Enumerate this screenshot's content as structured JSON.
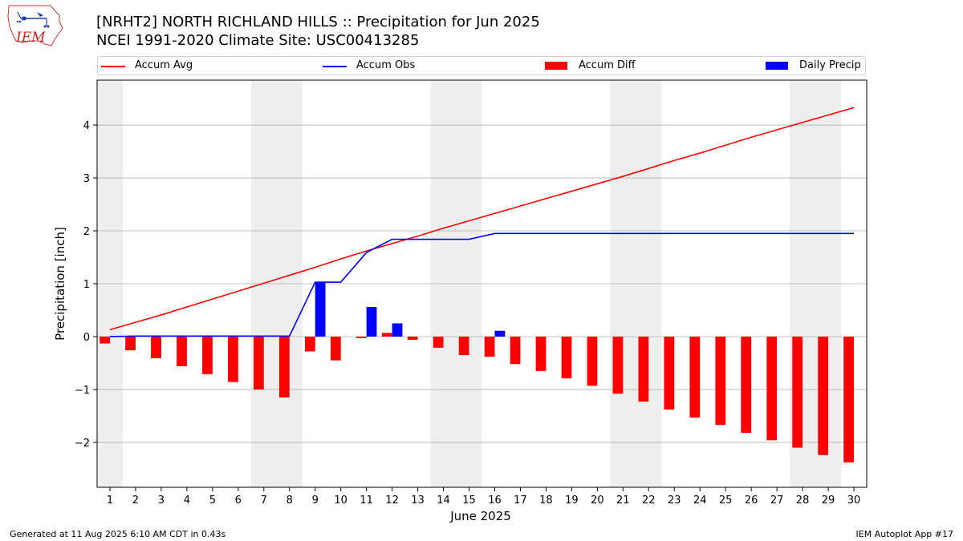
{
  "title_line1": "[NRHT2] NORTH RICHLAND HILLS :: Precipitation for Jun 2025",
  "title_line2": "NCEI 1991-2020 Climate Site: USC00413285",
  "logo_text": "IEM",
  "footer_left": "Generated at 11 Aug 2025 6:10 AM CDT in 0.43s",
  "footer_right": "IEM Autoplot App #17",
  "legend": [
    {
      "label": "Accum Avg",
      "kind": "line",
      "color": "#ff0000"
    },
    {
      "label": "Accum Obs",
      "kind": "line",
      "color": "#0000ff"
    },
    {
      "label": "Accum Diff",
      "kind": "box",
      "color": "#ff0000"
    },
    {
      "label": "Daily Precip",
      "kind": "box",
      "color": "#0000ff"
    }
  ],
  "chart_data": {
    "type": "bar",
    "xlabel": "June 2025",
    "ylabel": "Precipitation [inch]",
    "x": [
      1,
      2,
      3,
      4,
      5,
      6,
      7,
      8,
      9,
      10,
      11,
      12,
      13,
      14,
      15,
      16,
      17,
      18,
      19,
      20,
      21,
      22,
      23,
      24,
      25,
      26,
      27,
      28,
      29,
      30
    ],
    "ylim": [
      -2.85,
      4.85
    ],
    "yticks": [
      -2,
      -1,
      0,
      1,
      2,
      3,
      4
    ],
    "grid": "horizontal",
    "weekend_shading_days": [
      1,
      7,
      8,
      14,
      15,
      21,
      22,
      28,
      29
    ],
    "series": [
      {
        "name": "Accum Avg",
        "type": "line",
        "color": "#ff0000",
        "values": [
          0.13,
          0.27,
          0.41,
          0.56,
          0.71,
          0.86,
          1.01,
          1.16,
          1.31,
          1.47,
          1.62,
          1.76,
          1.9,
          2.05,
          2.19,
          2.33,
          2.47,
          2.61,
          2.75,
          2.89,
          3.03,
          3.18,
          3.33,
          3.47,
          3.62,
          3.77,
          3.91,
          4.05,
          4.19,
          4.33
        ]
      },
      {
        "name": "Accum Obs",
        "type": "line",
        "color": "#0000ff",
        "values": [
          0.0,
          0.01,
          0.01,
          0.01,
          0.01,
          0.01,
          0.01,
          0.01,
          1.03,
          1.03,
          1.59,
          1.84,
          1.84,
          1.84,
          1.84,
          1.95,
          1.95,
          1.95,
          1.95,
          1.95,
          1.95,
          1.95,
          1.95,
          1.95,
          1.95,
          1.95,
          1.95,
          1.95,
          1.95,
          1.95
        ]
      },
      {
        "name": "Accum Diff",
        "type": "bar",
        "color": "#ff0000",
        "values": [
          -0.13,
          -0.26,
          -0.41,
          -0.56,
          -0.71,
          -0.86,
          -1.0,
          -1.15,
          -0.28,
          -0.45,
          -0.03,
          0.07,
          -0.06,
          -0.21,
          -0.35,
          -0.38,
          -0.52,
          -0.65,
          -0.79,
          -0.93,
          -1.08,
          -1.23,
          -1.38,
          -1.53,
          -1.67,
          -1.82,
          -1.96,
          -2.1,
          -2.24,
          -2.38
        ]
      },
      {
        "name": "Daily Precip",
        "type": "bar",
        "color": "#0000ff",
        "values": [
          0,
          0,
          0,
          0,
          0,
          0,
          0,
          0,
          1.03,
          0,
          0.56,
          0.25,
          0,
          0,
          0,
          0.11,
          0,
          0,
          0,
          0,
          0,
          0,
          0,
          0,
          0,
          0,
          0,
          0,
          0,
          0
        ]
      }
    ]
  }
}
